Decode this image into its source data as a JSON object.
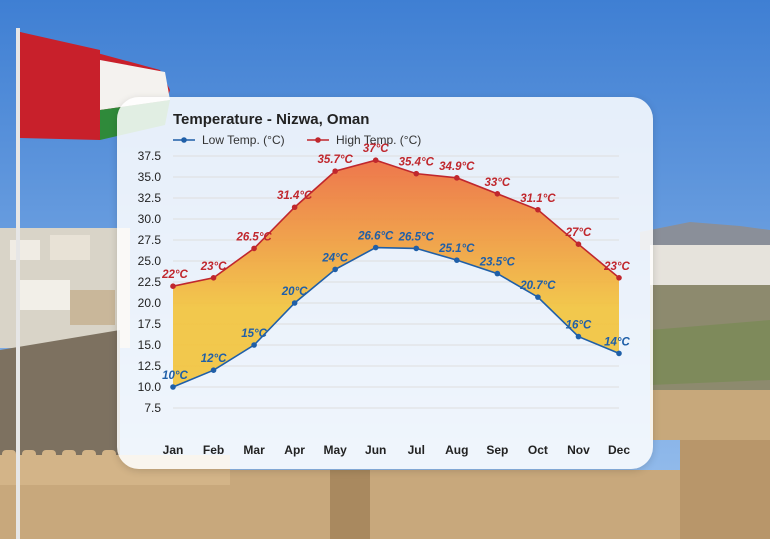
{
  "chart_data": {
    "type": "area",
    "title": "Temperature - Nizwa, Oman",
    "categories": [
      "Jan",
      "Feb",
      "Mar",
      "Apr",
      "May",
      "Jun",
      "Jul",
      "Aug",
      "Sep",
      "Oct",
      "Nov",
      "Dec"
    ],
    "series": [
      {
        "name": "Low Temp. (°C)",
        "color": "#1f5fa8",
        "values": [
          10,
          12,
          15,
          20,
          24,
          26.6,
          26.5,
          25.1,
          23.5,
          20.7,
          16,
          14
        ],
        "labels": [
          "10°C",
          "12°C",
          "15°C",
          "20°C",
          "24°C",
          "26.6°C",
          "26.5°C",
          "25.1°C",
          "23.5°C",
          "20.7°C",
          "16°C",
          "14°C"
        ]
      },
      {
        "name": "High Temp. (°C)",
        "color": "#c0272d",
        "values": [
          22,
          23,
          26.5,
          31.4,
          35.7,
          37,
          35.4,
          34.9,
          33,
          31.1,
          27,
          23
        ],
        "labels": [
          "22°C",
          "23°C",
          "26.5°C",
          "31.4°C",
          "35.7°C",
          "37°C",
          "35.4°C",
          "34.9°C",
          "33°C",
          "31.1°C",
          "27°C",
          "23°C"
        ]
      }
    ],
    "yticks": [
      "7.5",
      "10.0",
      "12.5",
      "15.0",
      "17.5",
      "20.0",
      "22.5",
      "25.0",
      "27.5",
      "30.0",
      "32.5",
      "35.0",
      "37.5"
    ],
    "ylim": [
      7.5,
      37.5
    ],
    "xlabel": "",
    "ylabel": "",
    "grid": true,
    "legend_position": "top-left",
    "fill_colors": {
      "low_end": "#f3c33a",
      "high_end": "#ee6a3a"
    }
  }
}
